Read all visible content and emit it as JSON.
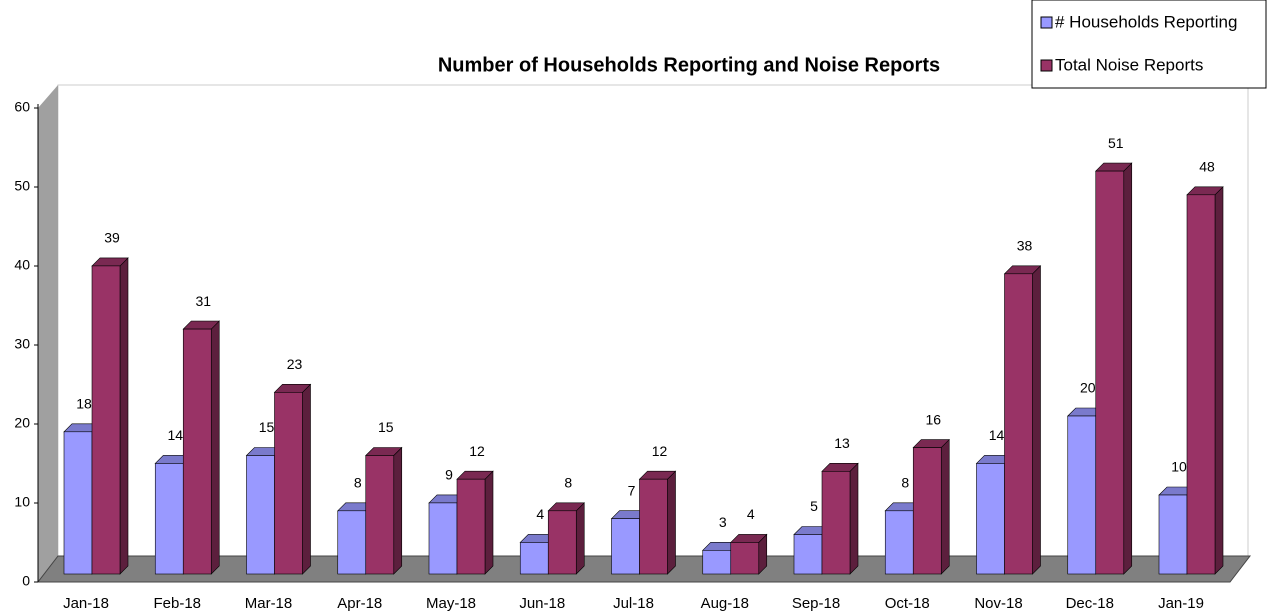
{
  "chart_data": {
    "type": "bar3d",
    "title": "Number of Households Reporting and Noise Reports",
    "categories": [
      "Jan-18",
      "Feb-18",
      "Mar-18",
      "Apr-18",
      "May-18",
      "Jun-18",
      "Jul-18",
      "Aug-18",
      "Sep-18",
      "Oct-18",
      "Nov-18",
      "Dec-18",
      "Jan-19"
    ],
    "series": [
      {
        "name": "# Households Reporting",
        "color": "#9999ff",
        "values": [
          18,
          14,
          15,
          8,
          9,
          4,
          7,
          3,
          5,
          8,
          14,
          20,
          10
        ]
      },
      {
        "name": "Total Noise Reports",
        "color": "#993366",
        "values": [
          39,
          31,
          23,
          15,
          12,
          8,
          12,
          4,
          13,
          16,
          38,
          51,
          48
        ]
      }
    ],
    "ylim": [
      0,
      60
    ],
    "yticks": [
      0,
      10,
      20,
      30,
      40,
      50,
      60
    ],
    "legend": "top-right"
  }
}
